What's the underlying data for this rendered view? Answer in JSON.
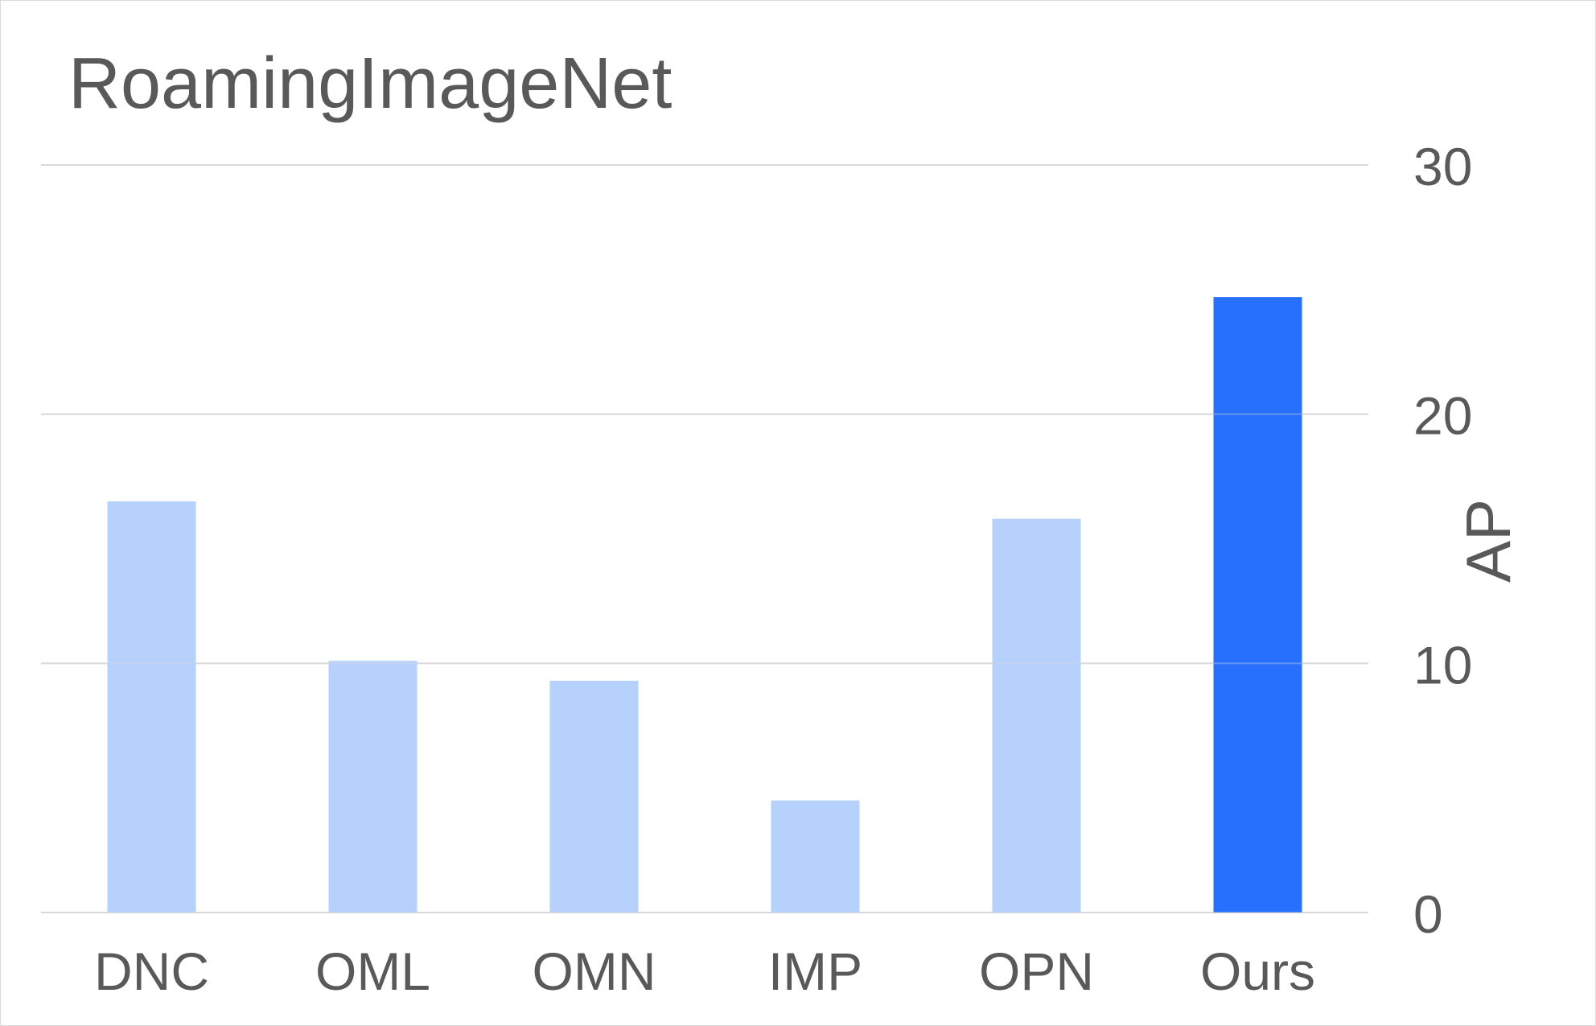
{
  "chart_data": {
    "type": "bar",
    "title": "RoamingImageNet",
    "xlabel": "",
    "ylabel": "AP",
    "categories": [
      "DNC",
      "OML",
      "OMN",
      "IMP",
      "OPN",
      "Ours"
    ],
    "values": [
      16.5,
      10.1,
      9.3,
      4.5,
      15.8,
      24.7
    ],
    "highlight_index": 5,
    "ylim": [
      0,
      30
    ],
    "yticks": [
      "0",
      "10",
      "20",
      "30"
    ],
    "y_axis_side": "right",
    "grid": true,
    "colors": {
      "bar": "#b4cffb",
      "highlight": "#276ffd",
      "grid": "#d9d9d9",
      "text": "#595959"
    }
  }
}
